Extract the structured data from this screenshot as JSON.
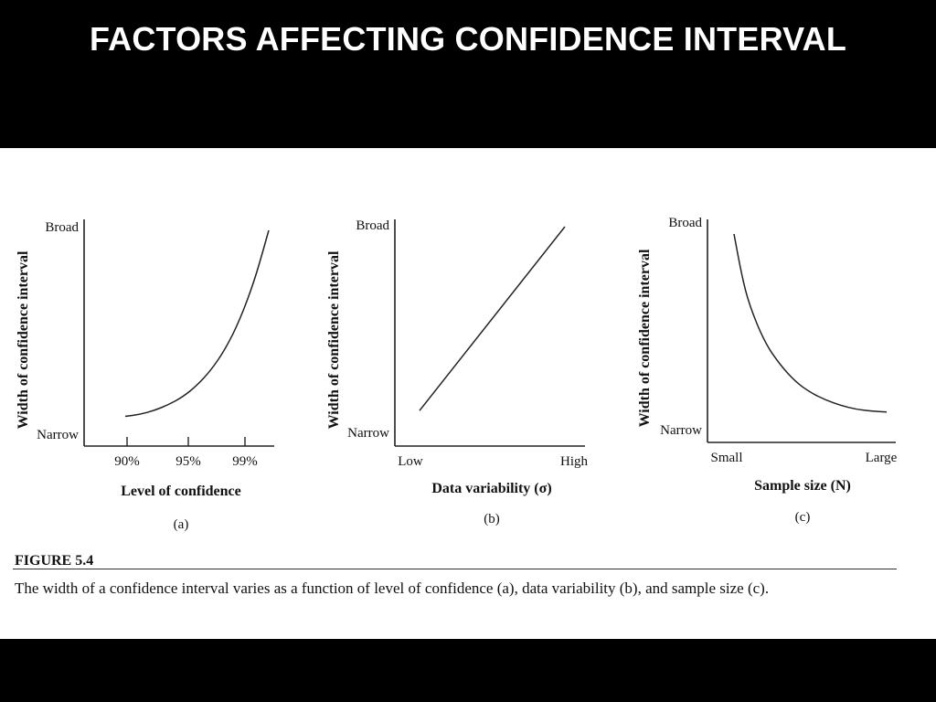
{
  "slide": {
    "title": "FACTORS AFFECTING CONFIDENCE INTERVAL"
  },
  "figure": {
    "label": "FIGURE 5.4",
    "caption": "The width of a confidence interval varies as a function of level of confidence (a), data variability (b), and sample size (c)."
  },
  "chart_data": [
    {
      "type": "line",
      "panel": "(a)",
      "xlabel": "Level of confidence",
      "ylabel": "Width of confidence interval",
      "x_ticks": [
        "90%",
        "95%",
        "99%"
      ],
      "y_ticks": [
        "Narrow",
        "Broad"
      ],
      "trend": "increasing-convex",
      "curve": [
        [
          0.0,
          0.04
        ],
        [
          0.1,
          0.05
        ],
        [
          0.2,
          0.07
        ],
        [
          0.3,
          0.1
        ],
        [
          0.4,
          0.14
        ],
        [
          0.5,
          0.2
        ],
        [
          0.6,
          0.28
        ],
        [
          0.7,
          0.39
        ],
        [
          0.8,
          0.54
        ],
        [
          0.9,
          0.74
        ],
        [
          0.97,
          0.92
        ],
        [
          1.0,
          1.0
        ]
      ]
    },
    {
      "type": "line",
      "panel": "(b)",
      "xlabel": "Data variability (σ)",
      "ylabel": "Width of confidence interval",
      "x_ticks": [
        "Low",
        "High"
      ],
      "y_ticks": [
        "Narrow",
        "Broad"
      ],
      "trend": "increasing-linear",
      "curve": [
        [
          0.0,
          0.06
        ],
        [
          1.0,
          1.0
        ]
      ]
    },
    {
      "type": "line",
      "panel": "(c)",
      "xlabel": "Sample size (N)",
      "ylabel": "Width of confidence interval",
      "x_ticks": [
        "Small",
        "Large"
      ],
      "y_ticks": [
        "Narrow",
        "Broad"
      ],
      "trend": "decreasing-convex",
      "curve": [
        [
          0.0,
          1.0
        ],
        [
          0.05,
          0.78
        ],
        [
          0.1,
          0.62
        ],
        [
          0.2,
          0.42
        ],
        [
          0.3,
          0.3
        ],
        [
          0.4,
          0.21
        ],
        [
          0.5,
          0.15
        ],
        [
          0.6,
          0.11
        ],
        [
          0.7,
          0.08
        ],
        [
          0.8,
          0.06
        ],
        [
          0.9,
          0.05
        ],
        [
          1.0,
          0.045
        ]
      ]
    }
  ]
}
